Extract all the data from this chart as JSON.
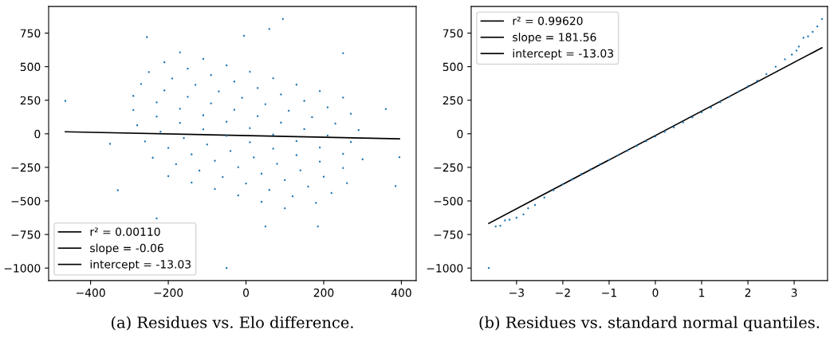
{
  "chart_data": [
    {
      "type": "scatter",
      "annotations": [
        "(a) Residues vs. Elo difference."
      ],
      "xlim": [
        -508,
        438
      ],
      "ylim": [
        -1093,
        948
      ],
      "xticks": [
        {
          "value": -400,
          "label": "−400"
        },
        {
          "value": -200,
          "label": "−200"
        },
        0,
        200,
        400
      ],
      "yticks": [
        {
          "value": -1000,
          "label": "−1000"
        },
        {
          "value": -750,
          "label": "−750"
        },
        {
          "value": -500,
          "label": "−500"
        },
        {
          "value": -250,
          "label": "−250"
        },
        0,
        250,
        500,
        750
      ],
      "grid": false,
      "legend": "bottom left",
      "series": [
        {
          "marker": "circle",
          "color": "#1f77b4",
          "x": [
            -170,
            -110,
            -50,
            10,
            70,
            130,
            190,
            250,
            -210,
            -150,
            -90,
            -30,
            30,
            90,
            150,
            210,
            270,
            -250,
            -190,
            -130,
            -70,
            -10,
            50,
            110,
            170,
            230,
            290,
            -270,
            -210,
            -150,
            -90,
            -30,
            30,
            90,
            150,
            210,
            270,
            -290,
            -230,
            -170,
            -110,
            -50,
            10,
            70,
            130,
            190,
            250,
            300,
            -290,
            -230,
            -170,
            -110,
            -50,
            10,
            70,
            130,
            190,
            250,
            -280,
            -220,
            -160,
            -100,
            -40,
            20,
            80,
            140,
            200,
            260,
            -260,
            -200,
            -140,
            -80,
            -20,
            40,
            100,
            160,
            220,
            -240,
            -180,
            -120,
            -60,
            0,
            60,
            120,
            180,
            -200,
            -140,
            -80,
            -20,
            40,
            100,
            -465,
            -255,
            95,
            -50,
            360,
            395,
            385,
            -350,
            -330,
            -230,
            50,
            185,
            250,
            -5,
            60
          ],
          "values": [
            606,
            558,
            510,
            462,
            414,
            366,
            318,
            270,
            533,
            485,
            437,
            389,
            341,
            293,
            245,
            197,
            149,
            460,
            412,
            364,
            316,
            268,
            220,
            172,
            124,
            76,
            28,
            371,
            323,
            275,
            227,
            179,
            131,
            83,
            35,
            -13,
            -61,
            282,
            234,
            186,
            138,
            90,
            42,
            -6,
            -54,
            -102,
            -150,
            -190,
            177,
            129,
            81,
            33,
            -15,
            -63,
            -111,
            -159,
            -207,
            -255,
            64,
            16,
            -32,
            -80,
            -128,
            -176,
            -224,
            -272,
            -320,
            -368,
            -57,
            -105,
            -153,
            -201,
            -249,
            -297,
            -345,
            -393,
            -441,
            -178,
            -226,
            -274,
            -322,
            -370,
            -418,
            -466,
            -514,
            -315,
            -363,
            -411,
            -459,
            -507,
            -555,
            245,
            720,
            855,
            -1000,
            185,
            -175,
            -390,
            -75,
            -420,
            -630,
            -690,
            -690,
            600,
            730,
            780
          ]
        },
        {
          "type": "line",
          "name": "r² = 0.00110",
          "color": "#000000",
          "x": [
            -465,
            395
          ],
          "values": [
            15,
            -37
          ]
        },
        {
          "type": "line",
          "name": "slope = -0.06",
          "color": "#000000"
        },
        {
          "type": "line",
          "name": "intercept = -13.03",
          "color": "#000000"
        }
      ]
    },
    {
      "type": "scatter",
      "annotations": [
        "(b) Residues vs. standard normal quantiles."
      ],
      "xlim": [
        -3.98,
        3.72
      ],
      "ylim": [
        -1093,
        948
      ],
      "xticks": [
        {
          "value": -3,
          "label": "−3"
        },
        {
          "value": -2,
          "label": "−2"
        },
        {
          "value": -1,
          "label": "−1"
        },
        0,
        1,
        2,
        3
      ],
      "yticks": [
        {
          "value": -1000,
          "label": "−1000"
        },
        {
          "value": -750,
          "label": "−750"
        },
        {
          "value": -500,
          "label": "−500"
        },
        {
          "value": -250,
          "label": "−250"
        },
        0,
        250,
        500,
        750
      ],
      "grid": false,
      "legend": "top left",
      "series": [
        {
          "marker": "circle",
          "color": "#1f77b4",
          "x": [
            -3.6,
            -3.45,
            -3.35,
            -3.25,
            -3.15,
            -3.0,
            -2.85,
            -2.75,
            -2.6,
            -2.4,
            -2.2,
            -2.0,
            -1.8,
            -1.6,
            -1.4,
            -1.2,
            -1.0,
            -0.8,
            -0.6,
            -0.4,
            -0.2,
            0,
            0.2,
            0.4,
            0.6,
            0.8,
            1.0,
            1.2,
            1.4,
            1.6,
            1.8,
            2.0,
            2.2,
            2.4,
            2.6,
            2.8,
            2.95,
            3.05,
            3.1,
            3.2,
            3.3,
            3.4,
            3.5,
            3.6
          ],
          "values": [
            -1000,
            -690,
            -685,
            -645,
            -640,
            -625,
            -600,
            -555,
            -530,
            -475,
            -420,
            -375,
            -340,
            -300,
            -265,
            -228,
            -195,
            -160,
            -125,
            -90,
            -55,
            -20,
            15,
            48,
            85,
            122,
            160,
            195,
            235,
            275,
            315,
            355,
            395,
            445,
            500,
            555,
            590,
            620,
            650,
            715,
            725,
            760,
            800,
            855
          ]
        },
        {
          "type": "line",
          "name": "r² = 0.99620",
          "color": "#000000",
          "x": [
            -3.6,
            3.6
          ],
          "values": [
            -667,
            641
          ]
        },
        {
          "type": "line",
          "name": "slope = 181.56",
          "color": "#000000"
        },
        {
          "type": "line",
          "name": "intercept = -13.03",
          "color": "#000000"
        }
      ]
    }
  ]
}
